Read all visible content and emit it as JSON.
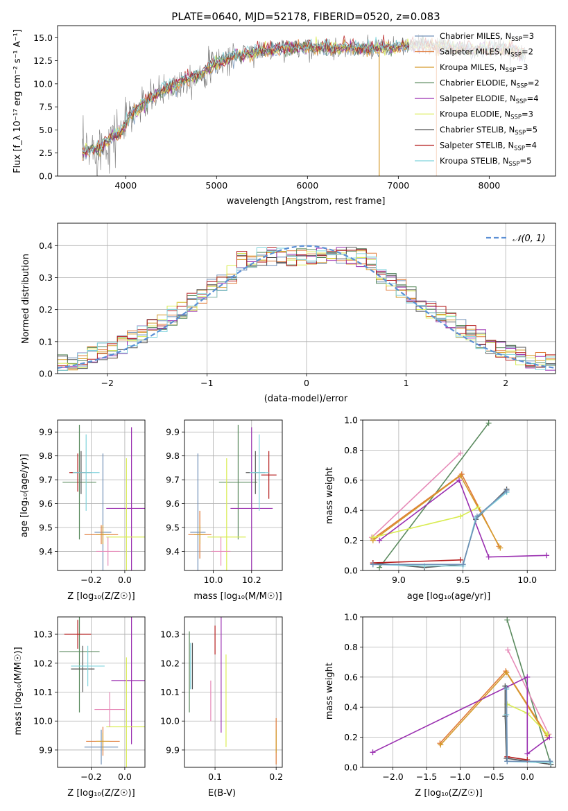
{
  "colors": {
    "Chabrier MILES": "#6f8fb6",
    "Salpeter MILES": "#e07b39",
    "Kroupa MILES": "#d59b2c",
    "Chabrier ELODIE": "#5a8a5e",
    "Salpeter ELODIE": "#9a2fb0",
    "Kroupa ELODIE": "#d9ec52",
    "Chabrier STELIB": "#555555",
    "Salpeter STELIB": "#b51d1d",
    "Kroupa STELIB": "#7fd3dc"
  },
  "chart_data": [
    {
      "id": "spectrum",
      "type": "line",
      "title": "PLATE=0640, MJD=52178, FIBERID=0520, z=0.083",
      "xlabel": "wavelength [Angstrom, rest frame]",
      "ylabel": "Flux [f_λ 10⁻¹⁷ erg cm⁻² s⁻¹ A⁻¹]",
      "xlim": [
        3250,
        8730
      ],
      "ylim": [
        0,
        16.3
      ],
      "xticks": [
        "4000",
        "5000",
        "6000",
        "7000",
        "8000"
      ],
      "yticks": [
        "0.0",
        "2.5",
        "5.0",
        "7.5",
        "10.0",
        "12.5",
        "15.0"
      ],
      "legend_position": "right",
      "legend": [
        {
          "name": "Chabrier MILES",
          "nssp": "3"
        },
        {
          "name": "Salpeter MILES",
          "nssp": "2"
        },
        {
          "name": "Kroupa MILES",
          "nssp": "3"
        },
        {
          "name": "Chabrier ELODIE",
          "nssp": "2"
        },
        {
          "name": "Salpeter ELODIE",
          "nssp": "4"
        },
        {
          "name": "Kroupa ELODIE",
          "nssp": "3"
        },
        {
          "name": "Chabrier STELIB",
          "nssp": "5"
        },
        {
          "name": "Salpeter STELIB",
          "nssp": "4"
        },
        {
          "name": "Kroupa STELIB",
          "nssp": "5"
        }
      ],
      "continuum": [
        [
          3520,
          2.5
        ],
        [
          3700,
          3.0
        ],
        [
          3850,
          4.3
        ],
        [
          3950,
          4.8
        ],
        [
          4050,
          6.5
        ],
        [
          4200,
          7.8
        ],
        [
          4400,
          9.2
        ],
        [
          4600,
          10.2
        ],
        [
          4800,
          11.0
        ],
        [
          5000,
          12.2
        ],
        [
          5200,
          13.0
        ],
        [
          5400,
          13.4
        ],
        [
          5600,
          13.7
        ],
        [
          5800,
          13.9
        ],
        [
          6000,
          14.0
        ],
        [
          6200,
          13.8
        ],
        [
          6400,
          13.9
        ],
        [
          6600,
          13.8
        ],
        [
          6800,
          13.9
        ],
        [
          7000,
          14.0
        ],
        [
          7200,
          14.1
        ],
        [
          7400,
          14.1
        ],
        [
          7600,
          14.0
        ],
        [
          7800,
          13.7
        ],
        [
          8000,
          13.8
        ],
        [
          8200,
          13.8
        ],
        [
          8400,
          13.2
        ]
      ]
    },
    {
      "id": "residuals",
      "type": "line",
      "xlabel": "(data-model)/error",
      "ylabel": "Normed distribution",
      "xlim": [
        -2.5,
        2.5
      ],
      "ylim": [
        0,
        0.47
      ],
      "xticks": [
        "−2",
        "−1",
        "0",
        "1",
        "2"
      ],
      "yticks": [
        "0.0",
        "0.1",
        "0.2",
        "0.3",
        "0.4"
      ],
      "legend_position": "top-right",
      "gaussian_label": "𝒩(0, 1)",
      "grid": true
    },
    {
      "id": "age-vs-Z",
      "type": "scatter",
      "xlabel": "Z [log₁₀(Z/Z☉)]",
      "ylabel": "age  [log₁₀(age/yr)]",
      "xlim": [
        -0.4,
        0.12
      ],
      "ylim": [
        9.32,
        9.95
      ],
      "xticks": [
        "−0.2",
        "0.0"
      ],
      "yticks": [
        "9.4",
        "9.5",
        "9.6",
        "9.7",
        "9.8",
        "9.9"
      ],
      "grid": true,
      "points": [
        {
          "model": "Chabrier MILES",
          "x": -0.13,
          "y": 9.48,
          "xerr": 0.05,
          "yerr": 0.33
        },
        {
          "model": "Salpeter MILES",
          "x": -0.14,
          "y": 9.47,
          "xerr": 0.1,
          "yerr": 0.04
        },
        {
          "model": "Kroupa MILES",
          "x": -0.13,
          "y": 9.47,
          "xerr": 0.04,
          "yerr": 0.04
        },
        {
          "model": "Chabrier ELODIE",
          "x": -0.27,
          "y": 9.69,
          "xerr": 0.1,
          "yerr": 0.24
        },
        {
          "model": "Salpeter ELODIE",
          "x": 0.04,
          "y": 9.58,
          "xerr": 0.15,
          "yerr": 0.34
        },
        {
          "model": "Kroupa ELODIE",
          "x": 0.01,
          "y": 9.46,
          "xerr": 0.12,
          "yerr": 0.33
        },
        {
          "model": "Chabrier STELIB",
          "x": -0.26,
          "y": 9.73,
          "xerr": 0.06,
          "yerr": 0.09
        },
        {
          "model": "Salpeter STELIB",
          "x": -0.28,
          "y": 9.73,
          "xerr": 0.05,
          "yerr": 0.08
        },
        {
          "model": "Kroupa STELIB",
          "x": -0.23,
          "y": 9.73,
          "xerr": 0.08,
          "yerr": 0.16
        },
        {
          "model": "Pink",
          "x": -0.1,
          "y": 9.4,
          "xerr": 0.07,
          "yerr": 0.06
        }
      ]
    },
    {
      "id": "age-vs-mass",
      "type": "scatter",
      "xlabel": "mass [log₁₀(M/M☉)]",
      "ylabel": "",
      "xlim": [
        9.85,
        10.36
      ],
      "ylim": [
        9.32,
        9.95
      ],
      "xticks": [
        "10.0",
        "10.2"
      ],
      "yticks": [
        "9.4",
        "9.5",
        "9.6",
        "9.7",
        "9.8",
        "9.9"
      ],
      "grid": true,
      "points": [
        {
          "model": "Chabrier MILES",
          "x": 9.92,
          "y": 9.48,
          "xerr": 0.04,
          "yerr": 0.33
        },
        {
          "model": "Salpeter MILES",
          "x": 9.93,
          "y": 9.47,
          "xerr": 0.06,
          "yerr": 0.1
        },
        {
          "model": "Kroupa MILES",
          "x": 9.93,
          "y": 9.47,
          "xerr": 0.03,
          "yerr": 0.04
        },
        {
          "model": "Chabrier ELODIE",
          "x": 10.13,
          "y": 9.69,
          "xerr": 0.1,
          "yerr": 0.24
        },
        {
          "model": "Salpeter ELODIE",
          "x": 10.2,
          "y": 9.58,
          "xerr": 0.11,
          "yerr": 0.34
        },
        {
          "model": "Kroupa ELODIE",
          "x": 10.07,
          "y": 9.46,
          "xerr": 0.1,
          "yerr": 0.33
        },
        {
          "model": "Chabrier STELIB",
          "x": 10.22,
          "y": 9.73,
          "xerr": 0.05,
          "yerr": 0.09
        },
        {
          "model": "Salpeter STELIB",
          "x": 10.29,
          "y": 9.72,
          "xerr": 0.04,
          "yerr": 0.1
        },
        {
          "model": "Kroupa STELIB",
          "x": 10.24,
          "y": 9.73,
          "xerr": 0.05,
          "yerr": 0.16
        },
        {
          "model": "Pink",
          "x": 10.04,
          "y": 9.4,
          "xerr": 0.05,
          "yerr": 0.06
        }
      ]
    },
    {
      "id": "weight-vs-age",
      "type": "line",
      "xlabel": "age  [log₁₀(age/yr)]",
      "ylabel": "mass weight",
      "xlim": [
        8.72,
        10.22
      ],
      "ylim": [
        0.0,
        1.0
      ],
      "xticks": [
        "9.0",
        "9.5",
        "10.0"
      ],
      "yticks": [
        "0.0",
        "0.2",
        "0.4",
        "0.6",
        "0.8",
        "1.0"
      ],
      "grid": true,
      "series": [
        {
          "model": "Chabrier ELODIE",
          "x": [
            8.85,
            9.7
          ],
          "y": [
            0.02,
            0.98
          ]
        },
        {
          "model": "Pink",
          "x": [
            8.79,
            9.48
          ],
          "y": [
            0.22,
            0.78
          ]
        },
        {
          "model": "Salpeter MILES",
          "x": [
            8.8,
            9.49,
            9.78
          ],
          "y": [
            0.21,
            0.64,
            0.16
          ]
        },
        {
          "model": "Kroupa MILES",
          "x": [
            8.8,
            9.48,
            9.79
          ],
          "y": [
            0.2,
            0.63,
            0.15
          ]
        },
        {
          "model": "Kroupa ELODIE",
          "x": [
            8.8,
            9.48,
            9.62
          ],
          "y": [
            0.22,
            0.36,
            0.42
          ]
        },
        {
          "model": "Salpeter ELODIE",
          "x": [
            8.85,
            9.47,
            9.7,
            10.15
          ],
          "y": [
            0.2,
            0.6,
            0.09,
            0.1
          ]
        },
        {
          "model": "Chabrier STELIB",
          "x": [
            8.8,
            9.2,
            9.5,
            9.6,
            9.84
          ],
          "y": [
            0.05,
            0.02,
            0.04,
            0.34,
            0.54
          ]
        },
        {
          "model": "Salpeter STELIB",
          "x": [
            8.8,
            9.48
          ],
          "y": [
            0.05,
            0.07
          ]
        },
        {
          "model": "Kroupa STELIB",
          "x": [
            8.8,
            9.2,
            9.5,
            9.6,
            9.84
          ],
          "y": [
            0.04,
            0.03,
            0.03,
            0.35,
            0.52
          ]
        },
        {
          "model": "Chabrier MILES",
          "x": [
            8.8,
            9.5,
            9.61,
            9.84
          ],
          "y": [
            0.04,
            0.04,
            0.36,
            0.53
          ]
        }
      ]
    },
    {
      "id": "mass-vs-Z",
      "type": "scatter",
      "xlabel": "Z [log₁₀(Z/Z☉)]",
      "ylabel": "mass [log₁₀(M/M☉)]",
      "xlim": [
        -0.4,
        0.12
      ],
      "ylim": [
        9.84,
        10.36
      ],
      "xticks": [
        "−0.2",
        "0.0"
      ],
      "yticks": [
        "9.9",
        "10.0",
        "10.1",
        "10.2",
        "10.3"
      ],
      "grid": true,
      "points": [
        {
          "model": "Chabrier MILES",
          "x": -0.14,
          "y": 9.91,
          "xerr": 0.1,
          "yerr": 0.06
        },
        {
          "model": "Salpeter MILES",
          "x": -0.13,
          "y": 9.93,
          "xerr": 0.1,
          "yerr": 0.05
        },
        {
          "model": "Kroupa MILES",
          "x": -0.13,
          "y": 9.93,
          "xerr": 0.04,
          "yerr": 0.03
        },
        {
          "model": "Chabrier ELODIE",
          "x": -0.27,
          "y": 10.24,
          "xerr": 0.12,
          "yerr": 0.21
        },
        {
          "model": "Salpeter ELODIE",
          "x": 0.04,
          "y": 10.14,
          "xerr": 0.12,
          "yerr": 0.22
        },
        {
          "model": "Kroupa ELODIE",
          "x": 0.01,
          "y": 9.98,
          "xerr": 0.12,
          "yerr": 0.24
        },
        {
          "model": "Chabrier STELIB",
          "x": -0.25,
          "y": 10.18,
          "xerr": 0.07,
          "yerr": 0.08
        },
        {
          "model": "Salpeter STELIB",
          "x": -0.28,
          "y": 10.3,
          "xerr": 0.08,
          "yerr": 0.05
        },
        {
          "model": "Kroupa STELIB",
          "x": -0.22,
          "y": 10.19,
          "xerr": 0.1,
          "yerr": 0.07
        },
        {
          "model": "Pink",
          "x": -0.09,
          "y": 10.04,
          "xerr": 0.09,
          "yerr": 0.06
        }
      ]
    },
    {
      "id": "mass-vs-ebv",
      "type": "scatter",
      "xlabel": "E(B-V)",
      "ylabel": "",
      "xlim": [
        0.05,
        0.21
      ],
      "ylim": [
        9.84,
        10.36
      ],
      "xticks": [
        "0.1",
        "0.2"
      ],
      "yticks": [
        "9.9",
        "10.0",
        "10.1",
        "10.2",
        "10.3"
      ],
      "grid": true,
      "points": [
        {
          "model": "Chabrier ELODIE",
          "x": 0.058,
          "y": 10.17,
          "yerr": 0.14
        },
        {
          "model": "Chabrier STELIB",
          "x": 0.063,
          "y": 10.19,
          "yerr": 0.08
        },
        {
          "model": "Kroupa STELIB",
          "x": 0.06,
          "y": 10.19,
          "yerr": 0.08
        },
        {
          "model": "Pink",
          "x": 0.093,
          "y": 10.07,
          "yerr": 0.07
        },
        {
          "model": "Salpeter STELIB",
          "x": 0.1,
          "y": 10.28,
          "yerr": 0.05
        },
        {
          "model": "Salpeter ELODIE",
          "x": 0.11,
          "y": 10.16,
          "yerr": 0.2
        },
        {
          "model": "Kroupa ELODIE",
          "x": 0.118,
          "y": 10.07,
          "yerr": 0.16
        },
        {
          "model": "Salpeter MILES",
          "x": 0.2,
          "y": 9.93,
          "yerr": 0.08
        },
        {
          "model": "Kroupa MILES",
          "x": 0.2,
          "y": 9.93,
          "yerr": 0.04
        }
      ]
    },
    {
      "id": "weight-vs-Z",
      "type": "line",
      "xlabel": "Z [log₁₀(Z/Z☉)]",
      "ylabel": "mass weight",
      "xlim": [
        -2.45,
        0.42
      ],
      "ylim": [
        0.0,
        1.0
      ],
      "xticks": [
        "−2.0",
        "−1.5",
        "−1.0",
        "−0.5",
        "0.0"
      ],
      "yticks": [
        "0.0",
        "0.2",
        "0.4",
        "0.6",
        "0.8",
        "1.0"
      ],
      "grid": true,
      "series": [
        {
          "model": "Chabrier ELODIE",
          "x": [
            -0.3,
            0.35
          ],
          "y": [
            0.98,
            0.02
          ]
        },
        {
          "model": "Pink",
          "x": [
            -0.29,
            0.32
          ],
          "y": [
            0.78,
            0.22
          ]
        },
        {
          "model": "Salpeter MILES",
          "x": [
            -1.3,
            -0.32,
            0.3
          ],
          "y": [
            0.16,
            0.64,
            0.21
          ]
        },
        {
          "model": "Kroupa MILES",
          "x": [
            -1.29,
            -0.31,
            0.3
          ],
          "y": [
            0.15,
            0.63,
            0.2
          ]
        },
        {
          "model": "Kroupa ELODIE",
          "x": [
            -0.3,
            0.0,
            0.3
          ],
          "y": [
            0.42,
            0.36,
            0.22
          ]
        },
        {
          "model": "Salpeter ELODIE",
          "x": [
            -2.3,
            0.0,
            0.0,
            0.33
          ],
          "y": [
            0.1,
            0.6,
            0.09,
            0.2
          ]
        },
        {
          "model": "Chabrier STELIB",
          "x": [
            -0.33,
            -0.33,
            -0.31,
            0.35
          ],
          "y": [
            0.54,
            0.34,
            0.06,
            0.02
          ]
        },
        {
          "model": "Kroupa STELIB",
          "x": [
            -0.31,
            -0.31,
            -0.3,
            0.35
          ],
          "y": [
            0.52,
            0.35,
            0.04,
            0.03
          ]
        },
        {
          "model": "Salpeter STELIB",
          "x": [
            -0.3,
            0.0
          ],
          "y": [
            0.07,
            0.05
          ]
        },
        {
          "model": "Chabrier MILES",
          "x": [
            -0.31,
            -0.3,
            0.34
          ],
          "y": [
            0.53,
            0.04,
            0.04
          ]
        }
      ]
    }
  ]
}
